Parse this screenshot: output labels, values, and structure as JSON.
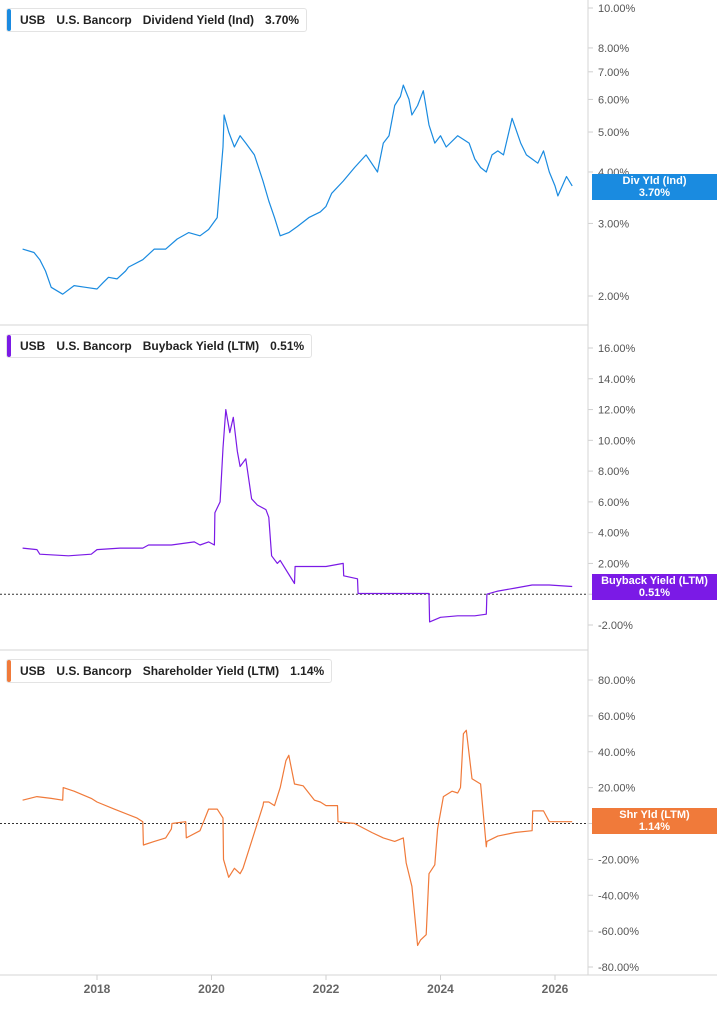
{
  "ticker": "USB",
  "company": "U.S. Bancorp",
  "x_ticks": [
    "2018",
    "2020",
    "2022",
    "2024",
    "2026"
  ],
  "chart_data": [
    {
      "type": "line",
      "name": "Dividend Yield (Ind)",
      "legend_value": "3.70%",
      "badge_label": "Div Yld (Ind)",
      "badge_value": "3.70%",
      "color": "#1a8be0",
      "scale": "log",
      "ylim": [
        1.85,
        10.6
      ],
      "y_ticks": [
        "10.00%",
        "8.00%",
        "7.00%",
        "6.00%",
        "5.00%",
        "4.00%",
        "3.00%",
        "2.00%"
      ],
      "y_tick_values": [
        10,
        8,
        7,
        6,
        5,
        4,
        3,
        2
      ],
      "x": [
        2016.7,
        2016.9,
        2017.0,
        2017.1,
        2017.2,
        2017.4,
        2017.6,
        2017.8,
        2018.0,
        2018.1,
        2018.2,
        2018.35,
        2018.5,
        2018.55,
        2018.8,
        2019.0,
        2019.2,
        2019.4,
        2019.6,
        2019.8,
        2019.95,
        2020.1,
        2020.2,
        2020.22,
        2020.3,
        2020.4,
        2020.5,
        2020.6,
        2020.75,
        2020.9,
        2021.0,
        2021.1,
        2021.2,
        2021.35,
        2021.5,
        2021.7,
        2021.9,
        2022.0,
        2022.1,
        2022.3,
        2022.5,
        2022.7,
        2022.9,
        2023.0,
        2023.1,
        2023.2,
        2023.3,
        2023.35,
        2023.45,
        2023.5,
        2023.6,
        2023.7,
        2023.8,
        2023.9,
        2024.0,
        2024.1,
        2024.3,
        2024.5,
        2024.6,
        2024.7,
        2024.8,
        2024.9,
        2025.0,
        2025.1,
        2025.25,
        2025.4,
        2025.5,
        2025.6,
        2025.7,
        2025.8,
        2025.9,
        2026.0,
        2026.05,
        2026.2,
        2026.3
      ],
      "values": [
        2.6,
        2.55,
        2.45,
        2.3,
        2.1,
        2.02,
        2.12,
        2.1,
        2.08,
        2.15,
        2.22,
        2.2,
        2.3,
        2.35,
        2.45,
        2.6,
        2.6,
        2.75,
        2.85,
        2.8,
        2.9,
        3.1,
        4.6,
        5.5,
        5.0,
        4.6,
        4.9,
        4.7,
        4.4,
        3.8,
        3.4,
        3.1,
        2.8,
        2.85,
        2.95,
        3.1,
        3.2,
        3.3,
        3.55,
        3.8,
        4.1,
        4.4,
        4.0,
        4.7,
        4.9,
        5.8,
        6.1,
        6.5,
        6.0,
        5.5,
        5.8,
        6.3,
        5.2,
        4.7,
        4.9,
        4.6,
        4.9,
        4.7,
        4.3,
        4.1,
        4.0,
        4.4,
        4.5,
        4.4,
        5.4,
        4.7,
        4.4,
        4.3,
        4.2,
        4.5,
        4.0,
        3.7,
        3.5,
        3.9,
        3.7
      ]
    },
    {
      "type": "line",
      "name": "Buyback Yield (LTM)",
      "legend_value": "0.51%",
      "badge_label": "Buyback Yield (LTM)",
      "badge_value": "0.51%",
      "color": "#7b1ae6",
      "scale": "linear",
      "ylim": [
        -3.0,
        17.0
      ],
      "y_ticks": [
        "16.00%",
        "14.00%",
        "12.00%",
        "10.00%",
        "8.00%",
        "6.00%",
        "4.00%",
        "2.00%",
        "0.00%",
        "-2.00%"
      ],
      "y_tick_values": [
        16,
        14,
        12,
        10,
        8,
        6,
        4,
        2,
        0,
        -2
      ],
      "zero_line": true,
      "x": [
        2016.7,
        2016.95,
        2017.0,
        2017.5,
        2017.9,
        2018.0,
        2018.4,
        2018.8,
        2018.9,
        2019.3,
        2019.7,
        2019.8,
        2019.95,
        2020.05,
        2020.06,
        2020.15,
        2020.2,
        2020.25,
        2020.32,
        2020.38,
        2020.45,
        2020.5,
        2020.6,
        2020.7,
        2020.8,
        2020.95,
        2021.0,
        2021.05,
        2021.15,
        2021.2,
        2021.45,
        2021.46,
        2021.75,
        2022.0,
        2022.3,
        2022.31,
        2022.55,
        2022.56,
        2023.0,
        2023.5,
        2023.8,
        2023.81,
        2024.0,
        2024.3,
        2024.6,
        2024.8,
        2024.81,
        2025.0,
        2025.3,
        2025.6,
        2025.9,
        2026.3
      ],
      "values": [
        3.0,
        2.9,
        2.6,
        2.5,
        2.6,
        2.9,
        3.0,
        3.0,
        3.2,
        3.2,
        3.4,
        3.2,
        3.4,
        3.2,
        5.3,
        6.0,
        9.5,
        12.0,
        10.5,
        11.5,
        9.3,
        8.3,
        8.8,
        6.2,
        5.8,
        5.5,
        5.0,
        2.5,
        2.0,
        2.2,
        0.7,
        1.8,
        1.8,
        1.8,
        2.0,
        1.2,
        1.0,
        0.05,
        0.05,
        0.05,
        0.05,
        -1.8,
        -1.5,
        -1.4,
        -1.4,
        -1.3,
        0.0,
        0.2,
        0.4,
        0.6,
        0.6,
        0.5
      ]
    },
    {
      "type": "line",
      "name": "Shareholder Yield (LTM)",
      "legend_value": "1.14%",
      "badge_label": "Shr Yld (LTM)",
      "badge_value": "1.14%",
      "color": "#f07a3a",
      "scale": "linear",
      "ylim": [
        -85,
        95
      ],
      "y_ticks": [
        "80.00%",
        "60.00%",
        "40.00%",
        "20.00%",
        "0.00%",
        "-20.00%",
        "-40.00%",
        "-60.00%",
        "-80.00%"
      ],
      "y_tick_values": [
        80,
        60,
        40,
        20,
        0,
        -20,
        -40,
        -60,
        -80
      ],
      "zero_line": true,
      "x": [
        2016.7,
        2016.95,
        2017.2,
        2017.4,
        2017.41,
        2017.6,
        2017.9,
        2018.0,
        2018.3,
        2018.7,
        2018.8,
        2018.81,
        2019.0,
        2019.2,
        2019.3,
        2019.31,
        2019.55,
        2019.56,
        2019.8,
        2019.95,
        2020.1,
        2020.2,
        2020.21,
        2020.3,
        2020.4,
        2020.5,
        2020.55,
        2020.9,
        2020.91,
        2021.0,
        2021.1,
        2021.2,
        2021.3,
        2021.35,
        2021.45,
        2021.6,
        2021.8,
        2021.9,
        2022.0,
        2022.2,
        2022.21,
        2022.5,
        2022.8,
        2023.0,
        2023.2,
        2023.35,
        2023.4,
        2023.5,
        2023.6,
        2023.65,
        2023.75,
        2023.8,
        2023.9,
        2023.95,
        2024.05,
        2024.2,
        2024.3,
        2024.35,
        2024.4,
        2024.45,
        2024.55,
        2024.7,
        2024.8,
        2024.81,
        2025.0,
        2025.3,
        2025.6,
        2025.61,
        2025.8,
        2025.9,
        2026.0,
        2026.3
      ],
      "values": [
        13,
        15,
        14,
        13,
        20,
        18,
        14,
        12,
        8,
        3,
        1,
        -12,
        -10,
        -8,
        -3,
        0,
        1,
        -8,
        -4,
        8,
        8,
        3,
        -20,
        -30,
        -25,
        -28,
        -25,
        10,
        12,
        12,
        10,
        20,
        35,
        38,
        22,
        21,
        13,
        12,
        10,
        10,
        1,
        0,
        -5,
        -8,
        -10,
        -8,
        -22,
        -35,
        -68,
        -65,
        -62,
        -28,
        -23,
        -3,
        15,
        18,
        17,
        20,
        50,
        52,
        25,
        22,
        -13,
        -10,
        -7,
        -5,
        -4,
        7,
        7,
        1,
        1,
        1
      ]
    }
  ]
}
